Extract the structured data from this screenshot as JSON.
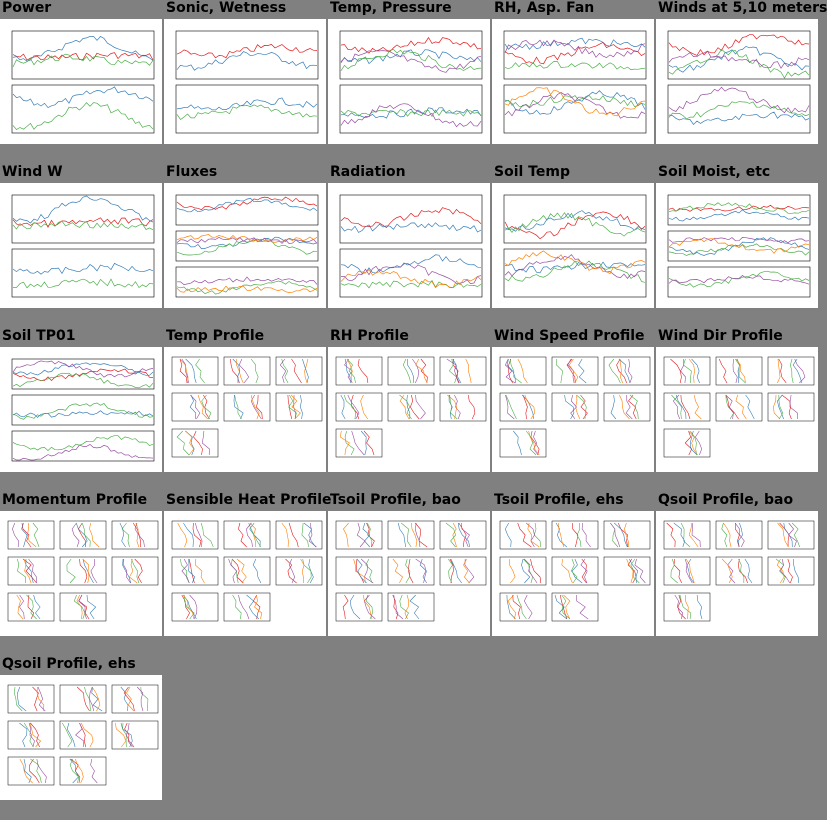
{
  "page": {
    "background": "#808080"
  },
  "thumbnails": [
    {
      "title": "Power",
      "kind": "ts2"
    },
    {
      "title": "Sonic, Wetness",
      "kind": "ts2"
    },
    {
      "title": "Temp, Pressure",
      "kind": "ts2"
    },
    {
      "title": "RH, Asp. Fan",
      "kind": "ts2"
    },
    {
      "title": "Winds at 5,10 meters",
      "kind": "ts2"
    },
    {
      "title": "Wind W",
      "kind": "ts2"
    },
    {
      "title": "Fluxes",
      "kind": "ts3"
    },
    {
      "title": "Radiation",
      "kind": "ts2"
    },
    {
      "title": "Soil Temp",
      "kind": "ts2"
    },
    {
      "title": "Soil Moist, etc",
      "kind": "ts3"
    },
    {
      "title": "Soil TP01",
      "kind": "ts3"
    },
    {
      "title": "Temp Profile",
      "kind": "grid",
      "rows": 3,
      "cols": 3,
      "n": 7
    },
    {
      "title": "RH Profile",
      "kind": "grid",
      "rows": 3,
      "cols": 3,
      "n": 7
    },
    {
      "title": "Wind Speed Profile",
      "kind": "grid",
      "rows": 3,
      "cols": 3,
      "n": 7
    },
    {
      "title": "Wind Dir Profile",
      "kind": "grid",
      "rows": 3,
      "cols": 3,
      "n": 7
    },
    {
      "title": "Momentum Profile",
      "kind": "grid",
      "rows": 3,
      "cols": 3,
      "n": 8
    },
    {
      "title": "Sensible Heat Profile",
      "kind": "grid",
      "rows": 3,
      "cols": 3,
      "n": 8
    },
    {
      "title": "Tsoil Profile, bao",
      "kind": "grid",
      "rows": 3,
      "cols": 3,
      "n": 8
    },
    {
      "title": "Tsoil Profile, ehs",
      "kind": "grid",
      "rows": 3,
      "cols": 3,
      "n": 8
    },
    {
      "title": "Qsoil Profile, bao",
      "kind": "grid",
      "rows": 3,
      "cols": 3,
      "n": 7
    },
    {
      "title": "Qsoil Profile, ehs",
      "kind": "grid",
      "rows": 3,
      "cols": 3,
      "n": 8
    }
  ],
  "colors": {
    "series": [
      "#e41a1c",
      "#377eb8",
      "#4daf4a",
      "#984ea3",
      "#ff7f00",
      "#a65628",
      "#00bcd4",
      "#e91e63",
      "#222222"
    ],
    "frame": "#000000"
  }
}
